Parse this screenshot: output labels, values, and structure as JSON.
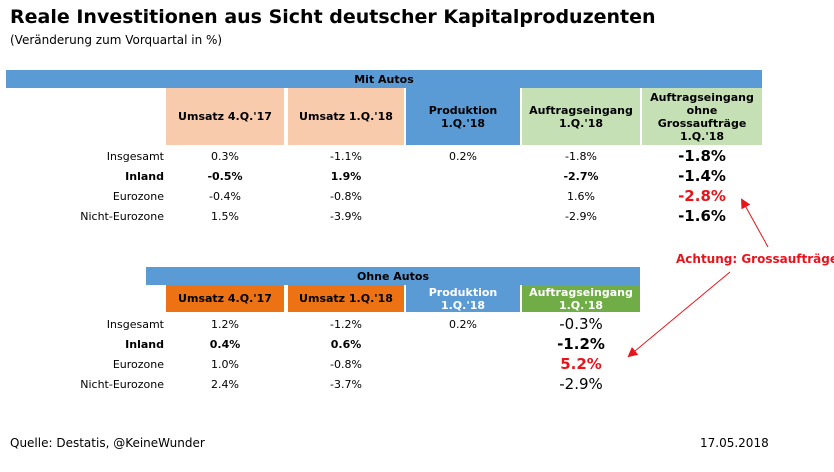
{
  "title": "Reale Investitionen aus Sicht deutscher Kapitalproduzenten",
  "subtitle": "(Veränderung zum Vorquartal in %)",
  "table1": {
    "band": "Mit Autos",
    "headers": [
      "Umsatz 4.Q.'17",
      "Umsatz 1.Q.'18",
      "Produktion\n1.Q.'18",
      "Auftragseingang\n1.Q.'18",
      "Auftragseingang\nohne\nGrossaufträge\n1.Q.'18"
    ],
    "rows": [
      {
        "label": "Insgesamt",
        "values": [
          "0.3%",
          "-1.1%",
          "0.2%",
          "-1.8%",
          "-1.8%"
        ]
      },
      {
        "label": "Inland",
        "values": [
          "-0.5%",
          "1.9%",
          "",
          "-2.7%",
          "-1.4%"
        ]
      },
      {
        "label": "Eurozone",
        "values": [
          "-0.4%",
          "-0.8%",
          "",
          "1.6%",
          "-2.8%"
        ]
      },
      {
        "label": "Nicht-Eurozone",
        "values": [
          "1.5%",
          "-3.9%",
          "",
          "-2.9%",
          "-1.6%"
        ]
      }
    ]
  },
  "table2": {
    "band": "Ohne Autos",
    "headers": [
      "Umsatz 4.Q.'17",
      "Umsatz 1.Q.'18",
      "Produktion\n1.Q.'18",
      "Auftragseingang\n1.Q.'18"
    ],
    "rows": [
      {
        "label": "Insgesamt",
        "values": [
          "1.2%",
          "-1.2%",
          "0.2%",
          "-0.3%"
        ]
      },
      {
        "label": "Inland",
        "values": [
          "0.4%",
          "0.6%",
          "",
          "-1.2%"
        ]
      },
      {
        "label": "Eurozone",
        "values": [
          "1.0%",
          "-0.8%",
          "",
          "5.2%"
        ]
      },
      {
        "label": "Nicht-Eurozone",
        "values": [
          "2.4%",
          "-3.7%",
          "",
          "-2.9%"
        ]
      }
    ]
  },
  "annotation": "Achtung: Grossaufträge!",
  "footer": {
    "source": "Quelle: Destatis, @KeineWunder",
    "date": "17.05.2018"
  },
  "colors": {
    "band": "#5b9bd5",
    "light_orange": "#f8cbad",
    "dark_orange": "#ec7214",
    "blue": "#5b9bd5",
    "light_green": "#c5e0b4",
    "dark_green": "#70ad47",
    "red": "#e8141a"
  }
}
